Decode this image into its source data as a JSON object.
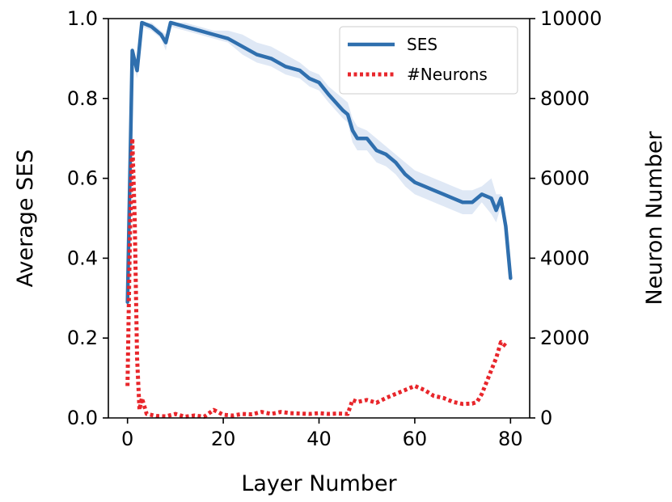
{
  "chart_data": {
    "type": "line",
    "title": "",
    "xlabel": "Layer Number",
    "ylabel_left": "Average SES",
    "ylabel_right": "Neuron Number",
    "xlim": [
      -4,
      84
    ],
    "ylim_left": [
      0,
      1.0
    ],
    "ylim_right": [
      0,
      10000
    ],
    "x_ticks": [
      0,
      20,
      40,
      60,
      80
    ],
    "y_left_ticks": [
      0.0,
      0.2,
      0.4,
      0.6,
      0.8,
      1.0
    ],
    "y_right_ticks": [
      0,
      2000,
      4000,
      6000,
      8000,
      10000
    ],
    "x_tick_labels": [
      "0",
      "20",
      "40",
      "60",
      "80"
    ],
    "y_left_tick_labels": [
      "0.0",
      "0.2",
      "0.4",
      "0.6",
      "0.8",
      "1.0"
    ],
    "y_right_tick_labels": [
      "0",
      "2000",
      "4000",
      "6000",
      "8000",
      "10000"
    ],
    "grid": false,
    "legend_position": "top-right",
    "legend_labels": [
      "SES",
      "#Neurons"
    ],
    "series": [
      {
        "name": "SES",
        "axis": "left",
        "style": "solid",
        "color": "#2f6fae",
        "band_color": "#dfe8f5",
        "x": [
          0,
          1,
          2,
          3,
          5,
          7,
          8,
          9,
          12,
          15,
          18,
          21,
          24,
          27,
          30,
          33,
          36,
          38,
          40,
          42,
          45,
          46,
          47,
          48,
          50,
          52,
          54,
          56,
          58,
          60,
          62,
          64,
          66,
          68,
          70,
          72,
          74,
          76,
          77,
          78,
          79,
          80
        ],
        "y": [
          0.29,
          0.92,
          0.87,
          0.99,
          0.98,
          0.96,
          0.94,
          0.99,
          0.98,
          0.97,
          0.96,
          0.95,
          0.93,
          0.91,
          0.9,
          0.88,
          0.87,
          0.85,
          0.84,
          0.81,
          0.77,
          0.76,
          0.72,
          0.7,
          0.7,
          0.67,
          0.66,
          0.64,
          0.61,
          0.59,
          0.58,
          0.57,
          0.56,
          0.55,
          0.54,
          0.54,
          0.56,
          0.55,
          0.52,
          0.55,
          0.48,
          0.35
        ],
        "y_upper": [
          0.3,
          0.93,
          0.89,
          0.99,
          0.99,
          0.97,
          0.96,
          0.99,
          0.99,
          0.98,
          0.97,
          0.97,
          0.96,
          0.94,
          0.93,
          0.91,
          0.89,
          0.87,
          0.86,
          0.83,
          0.8,
          0.79,
          0.75,
          0.73,
          0.72,
          0.7,
          0.68,
          0.66,
          0.64,
          0.62,
          0.61,
          0.6,
          0.59,
          0.58,
          0.57,
          0.57,
          0.58,
          0.6,
          0.56,
          0.56,
          0.49,
          0.36
        ],
        "y_lower": [
          0.28,
          0.9,
          0.85,
          0.98,
          0.97,
          0.95,
          0.92,
          0.98,
          0.97,
          0.96,
          0.95,
          0.94,
          0.91,
          0.89,
          0.88,
          0.86,
          0.85,
          0.83,
          0.82,
          0.79,
          0.75,
          0.74,
          0.69,
          0.67,
          0.67,
          0.64,
          0.63,
          0.61,
          0.58,
          0.56,
          0.55,
          0.54,
          0.53,
          0.52,
          0.51,
          0.51,
          0.54,
          0.51,
          0.49,
          0.53,
          0.46,
          0.34
        ]
      },
      {
        "name": "#Neurons",
        "axis": "right",
        "style": "dotted",
        "color": "#e8262b",
        "x": [
          0,
          0.5,
          1,
          1.5,
          2,
          2.5,
          3,
          3.5,
          4,
          6,
          8,
          10,
          12,
          14,
          16,
          18,
          20,
          22,
          24,
          26,
          28,
          30,
          32,
          34,
          36,
          38,
          40,
          42,
          44,
          46,
          47,
          48,
          50,
          52,
          54,
          56,
          58,
          60,
          62,
          64,
          66,
          68,
          70,
          72,
          73,
          74,
          75,
          76,
          77,
          78,
          79
        ],
        "y": [
          800,
          4500,
          7000,
          5000,
          1500,
          200,
          500,
          300,
          100,
          50,
          40,
          100,
          30,
          60,
          30,
          200,
          80,
          60,
          100,
          90,
          150,
          100,
          150,
          120,
          110,
          100,
          120,
          100,
          110,
          100,
          450,
          400,
          450,
          380,
          500,
          600,
          700,
          800,
          700,
          550,
          500,
          400,
          350,
          360,
          400,
          600,
          900,
          1200,
          1500,
          1900,
          1800
        ]
      }
    ]
  }
}
